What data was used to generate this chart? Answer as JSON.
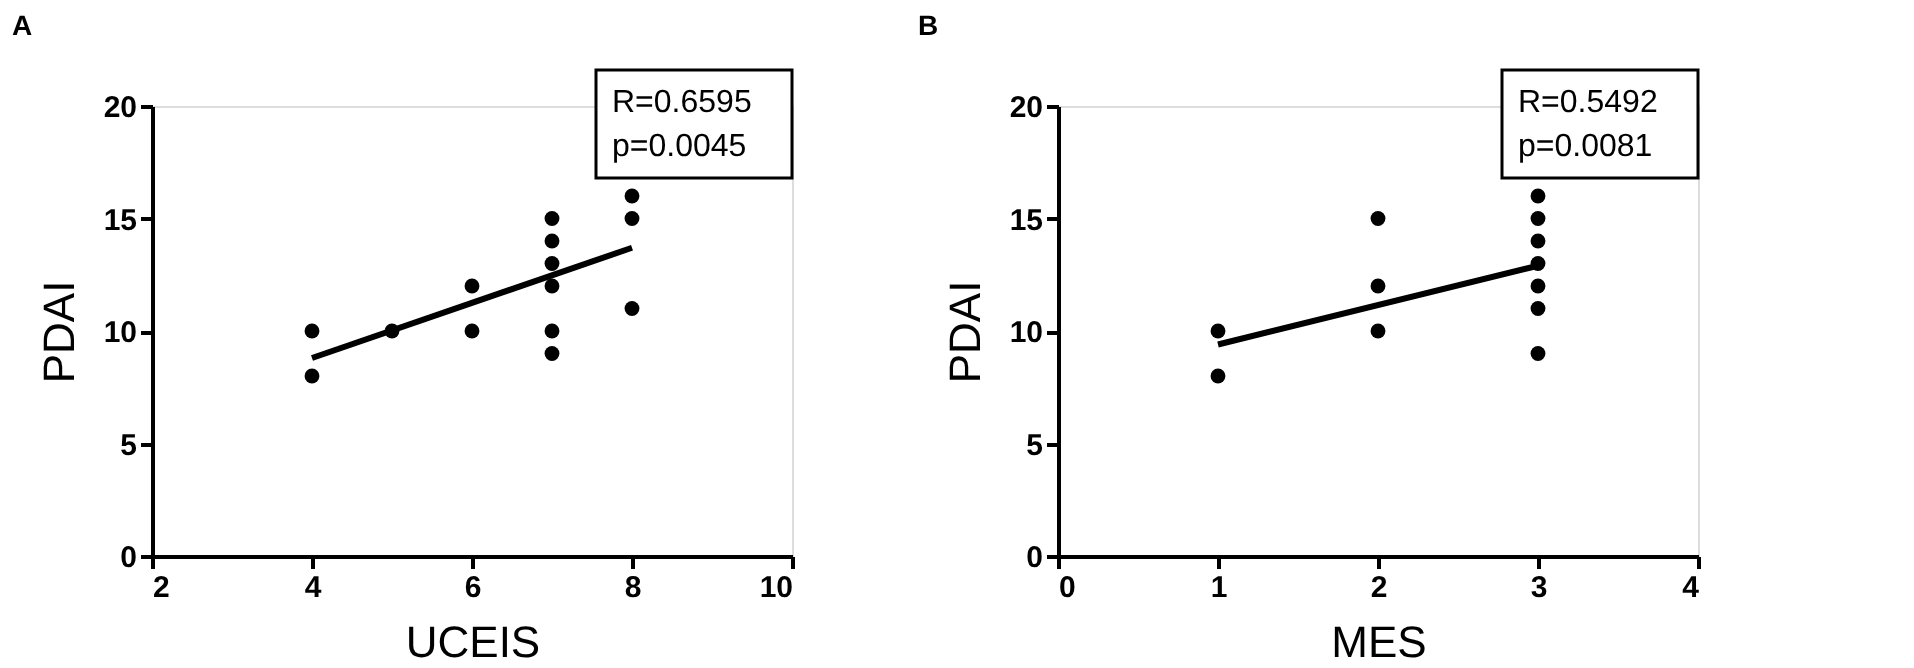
{
  "chart_data": [
    {
      "type": "scatter",
      "title": "A",
      "xlabel": "UCEIS",
      "ylabel": "PDAI",
      "xlim": [
        2,
        10
      ],
      "xticks": [
        2,
        4,
        6,
        8,
        10
      ],
      "ylim": [
        0,
        20
      ],
      "yticks": [
        0,
        5,
        10,
        15,
        20
      ],
      "annotations": [
        "R=0.6595",
        "p=0.0045"
      ],
      "series": [
        {
          "marker": "circle",
          "color": "#000000",
          "x": [
            4,
            4,
            5,
            6,
            6,
            7,
            7,
            7,
            7,
            7,
            7,
            8,
            8,
            8
          ],
          "values": [
            10,
            8,
            10,
            12,
            10,
            15,
            14,
            13,
            12,
            10,
            9,
            16,
            15,
            11
          ]
        },
        {
          "type": "line",
          "color": "#000000",
          "x": [
            4,
            8
          ],
          "values": [
            8.8,
            13.7
          ]
        }
      ]
    },
    {
      "type": "scatter",
      "title": "B",
      "xlabel": "MES",
      "ylabel": "PDAI",
      "xlim": [
        0,
        4
      ],
      "xticks": [
        0,
        1,
        2,
        3,
        4
      ],
      "ylim": [
        0,
        20
      ],
      "yticks": [
        0,
        5,
        10,
        15,
        20
      ],
      "annotations": [
        "R=0.5492",
        "p=0.0081"
      ],
      "series": [
        {
          "marker": "circle",
          "color": "#000000",
          "x": [
            1,
            1,
            2,
            2,
            2,
            3,
            3,
            3,
            3,
            3,
            3,
            3
          ],
          "values": [
            10,
            8,
            15,
            12,
            10,
            16,
            15,
            14,
            13,
            12,
            11,
            9
          ]
        },
        {
          "type": "line",
          "color": "#000000",
          "x": [
            1,
            3
          ],
          "values": [
            9.4,
            12.9
          ]
        }
      ]
    }
  ]
}
